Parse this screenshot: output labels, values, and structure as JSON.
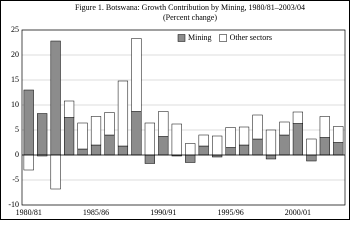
{
  "chart_data": {
    "type": "stacked_bar",
    "title": "Figure 1. Botswana: Growth Contribution by Mining, 1980/81–2003/04",
    "subtitle": "(Percent change)",
    "categories": [
      "1980/81",
      null,
      null,
      null,
      null,
      "1985/86",
      null,
      null,
      null,
      null,
      "1990/91",
      null,
      null,
      null,
      null,
      "1995/96",
      null,
      null,
      null,
      null,
      "2000/01",
      null,
      null,
      null
    ],
    "series": [
      {
        "name": "Mining",
        "color": "#8c8c8c",
        "values": [
          13,
          8.3,
          22.8,
          7.5,
          1.2,
          2,
          4,
          1.8,
          8.7,
          -1.7,
          3.7,
          -0.2,
          -1.5,
          1.8,
          -0.4,
          1.5,
          2,
          3.2,
          -0.8,
          4,
          6.3,
          -1.2,
          3.5,
          2.5
        ]
      },
      {
        "name": "Other sectors",
        "color": "#ffffff",
        "values": [
          -3,
          -0.2,
          -6.8,
          3.3,
          5.2,
          5.7,
          4.5,
          13,
          14.6,
          6.4,
          5,
          6.2,
          2.3,
          2.2,
          3.8,
          4,
          3.6,
          4.8,
          5,
          2.6,
          2.3,
          3.2,
          4.2,
          3.2
        ]
      }
    ],
    "ylim": [
      -10,
      25
    ],
    "yticks": [
      -10,
      -5,
      0,
      5,
      10,
      15,
      20,
      25
    ],
    "grid": true,
    "legend": "upper right"
  }
}
